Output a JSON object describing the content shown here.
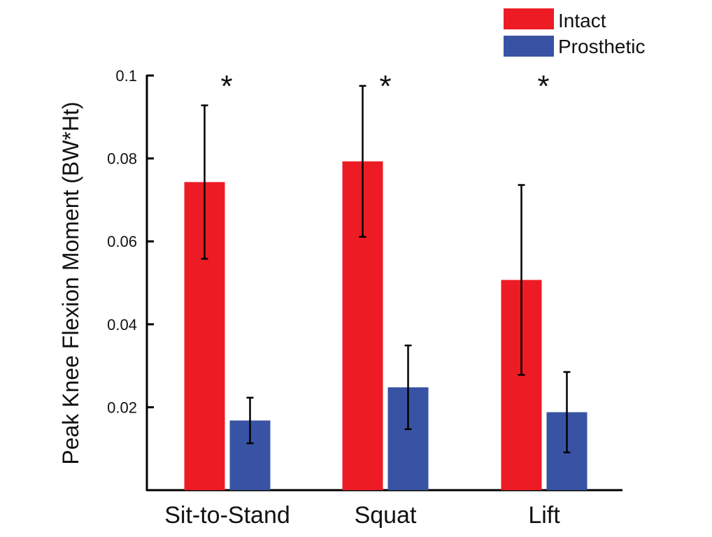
{
  "chart_data": {
    "type": "bar",
    "ylabel": "Peak Knee Flexion Moment (BW*Ht)",
    "ylim": [
      0,
      0.1
    ],
    "yticks": [
      "0.02",
      "0.04",
      "0.06",
      "0.08",
      "0.1"
    ],
    "categories": [
      "Sit-to-Stand",
      "Squat",
      "Lift"
    ],
    "series": [
      {
        "name": "Intact",
        "color": "#ed1c24",
        "values": [
          0.0743,
          0.0793,
          0.0507
        ],
        "error": [
          0.0185,
          0.0182,
          0.0229
        ]
      },
      {
        "name": "Prosthetic",
        "color": "#3953a4",
        "values": [
          0.0168,
          0.0248,
          0.0188
        ],
        "error": [
          0.0055,
          0.0101,
          0.0097
        ]
      }
    ],
    "annotations": [
      "*",
      "*",
      "*"
    ],
    "legend": "top-right",
    "grid": false
  }
}
